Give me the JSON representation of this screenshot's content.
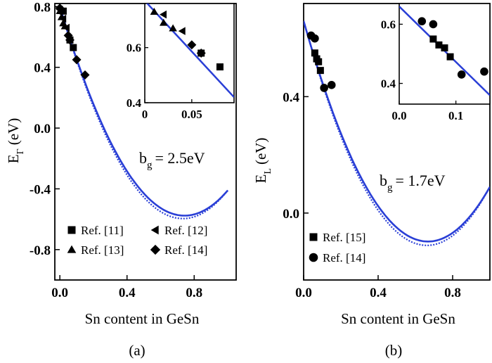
{
  "panel_labels": [
    "(a)",
    "(b)"
  ],
  "chart_data": [
    {
      "type": "scatter",
      "panel": "(a)",
      "xlabel": "Sn content in GeSn",
      "ylabel_main": "E",
      "ylabel_sub": "Γ",
      "ylabel_unit": "(eV)",
      "xlim": [
        -0.03,
        1.05
      ],
      "ylim": [
        -1.0,
        0.82
      ],
      "xticks": [
        0.0,
        0.4,
        0.8
      ],
      "xtick_labels": [
        "0.0",
        "0.4",
        "0.8"
      ],
      "yticks": [
        0.8,
        0.4,
        0.0,
        -0.4,
        -0.8
      ],
      "ytick_labels": [
        "0.8",
        "0.4",
        "0.0",
        "-0.4",
        "-0.8"
      ],
      "annotation": {
        "main": "b",
        "sub": "g",
        "rest": "= 2.5eV"
      },
      "curves": [
        {
          "style": "solid",
          "color": "#2a3fd6",
          "bowing": 2.5,
          "e0": 0.8,
          "e1": -0.41
        },
        {
          "style": "dotted",
          "color": "#2a3fd6",
          "bowing": 2.5,
          "e0": 0.8,
          "e1": -0.41,
          "extra": 0.1
        }
      ],
      "series": [
        {
          "legend": "Ref. [11]",
          "marker": "square",
          "points": [
            [
              0.02,
              0.77
            ],
            [
              0.06,
              0.58
            ],
            [
              0.08,
              0.53
            ]
          ]
        },
        {
          "legend": "Ref. [12]",
          "marker": "triangle-left",
          "points": [
            [
              0.0,
              0.78
            ],
            [
              0.02,
              0.72
            ],
            [
              0.04,
              0.66
            ]
          ]
        },
        {
          "legend": "Ref. [13]",
          "marker": "triangle-up",
          "points": [
            [
              0.0,
              0.77
            ],
            [
              0.01,
              0.73
            ],
            [
              0.02,
              0.69
            ],
            [
              0.03,
              0.67
            ]
          ]
        },
        {
          "legend": "Ref. [14]",
          "marker": "diamond",
          "points": [
            [
              0.0,
              0.79
            ],
            [
              0.05,
              0.61
            ],
            [
              0.06,
              0.58
            ],
            [
              0.1,
              0.45
            ],
            [
              0.15,
              0.35
            ]
          ]
        }
      ],
      "inset": {
        "xlim": [
          0.0,
          0.095
        ],
        "ylim": [
          0.4,
          0.76
        ],
        "xticks": [
          0.0,
          0.05
        ],
        "xtick_labels": [
          "0",
          "0.05"
        ],
        "yticks": [
          0.6,
          0.4
        ],
        "ytick_labels": [
          "0.6",
          "0.4"
        ],
        "line": [
          [
            0.0,
            0.77
          ],
          [
            0.095,
            0.42
          ]
        ]
      }
    },
    {
      "type": "scatter",
      "panel": "(b)",
      "xlabel": "Sn content in GeSn",
      "ylabel_main": "E",
      "ylabel_sub": "L",
      "ylabel_unit": "(eV)",
      "xlim": [
        0.0,
        1.0
      ],
      "ylim": [
        -0.23,
        0.72
      ],
      "xticks": [
        0.0,
        0.4,
        0.8
      ],
      "xtick_labels": [
        "0.0",
        "0.4",
        "0.8"
      ],
      "yticks": [
        0.4,
        0.0
      ],
      "ytick_labels": [
        "0.4",
        "0.0"
      ],
      "annotation": {
        "main": "b",
        "sub": "g",
        "rest": "= 1.7eV"
      },
      "curves": [
        {
          "style": "solid",
          "color": "#2a3fd6",
          "bowing": 1.7,
          "e0": 0.66,
          "e1": 0.09
        },
        {
          "style": "dotted",
          "color": "#2a3fd6",
          "bowing": 1.7,
          "e0": 0.66,
          "e1": 0.09,
          "extra": 0.06
        }
      ],
      "series": [
        {
          "legend": "Ref. [15]",
          "marker": "square",
          "points": [
            [
              0.06,
              0.55
            ],
            [
              0.07,
              0.53
            ],
            [
              0.08,
              0.52
            ],
            [
              0.09,
              0.49
            ]
          ]
        },
        {
          "legend": "Ref. [14]",
          "marker": "circle",
          "points": [
            [
              0.04,
              0.61
            ],
            [
              0.06,
              0.6
            ],
            [
              0.11,
              0.43
            ],
            [
              0.15,
              0.44
            ]
          ]
        }
      ],
      "inset": {
        "xlim": [
          0.0,
          0.16
        ],
        "ylim": [
          0.33,
          0.67
        ],
        "xticks": [
          0.0,
          0.1
        ],
        "xtick_labels": [
          "0.0",
          "0.1"
        ],
        "yticks": [
          0.6,
          0.4
        ],
        "ytick_labels": [
          "0.6",
          "0.4"
        ],
        "line": [
          [
            0.0,
            0.66
          ],
          [
            0.16,
            0.36
          ]
        ]
      }
    }
  ]
}
